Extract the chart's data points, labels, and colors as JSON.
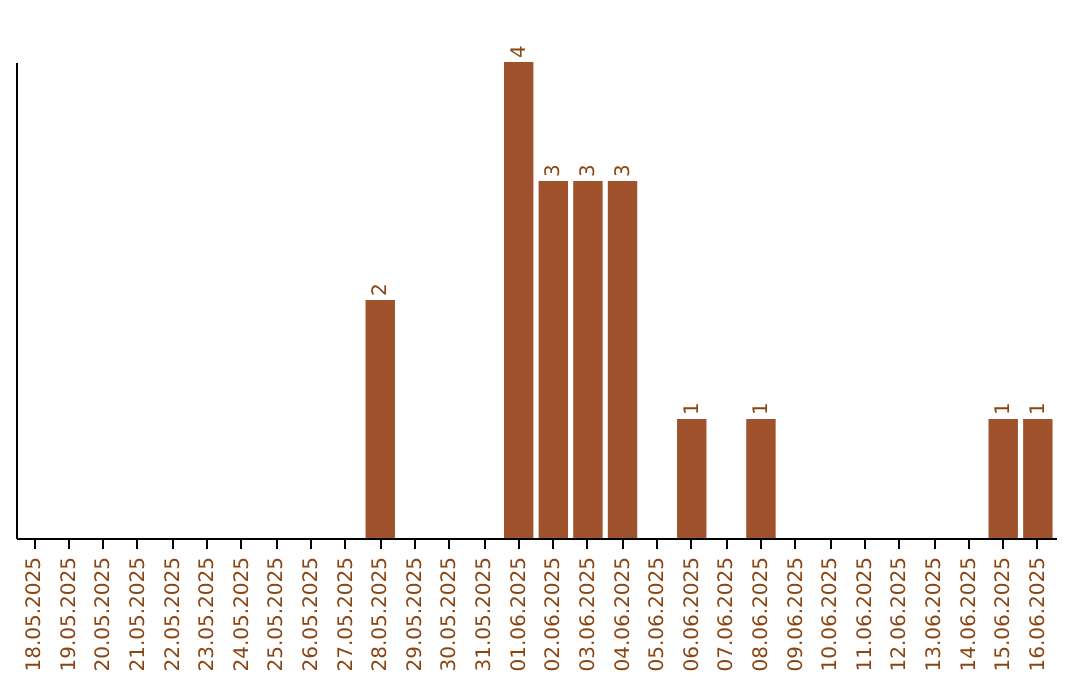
{
  "chart_data": {
    "type": "bar",
    "categories": [
      "18.05.2025",
      "19.05.2025",
      "20.05.2025",
      "21.05.2025",
      "22.05.2025",
      "23.05.2025",
      "24.05.2025",
      "25.05.2025",
      "26.05.2025",
      "27.05.2025",
      "28.05.2025",
      "29.05.2025",
      "30.05.2025",
      "31.05.2025",
      "01.06.2025",
      "02.06.2025",
      "03.06.2025",
      "04.06.2025",
      "05.06.2025",
      "06.06.2025",
      "07.06.2025",
      "08.06.2025",
      "09.06.2025",
      "10.06.2025",
      "11.06.2025",
      "12.06.2025",
      "13.06.2025",
      "14.06.2025",
      "15.06.2025",
      "16.06.2025"
    ],
    "values": [
      0,
      0,
      0,
      0,
      0,
      0,
      0,
      0,
      0,
      0,
      2,
      0,
      0,
      0,
      4,
      3,
      3,
      3,
      0,
      1,
      0,
      1,
      0,
      0,
      0,
      0,
      0,
      0,
      1,
      1
    ],
    "value_labels": [
      null,
      null,
      null,
      null,
      null,
      null,
      null,
      null,
      null,
      null,
      "2",
      null,
      null,
      null,
      "4",
      "3",
      "3",
      "3",
      null,
      "1",
      null,
      "1",
      null,
      null,
      null,
      null,
      null,
      null,
      "1",
      "1"
    ],
    "color": "#a0522d",
    "tick_labels": "x",
    "grid": false
  }
}
